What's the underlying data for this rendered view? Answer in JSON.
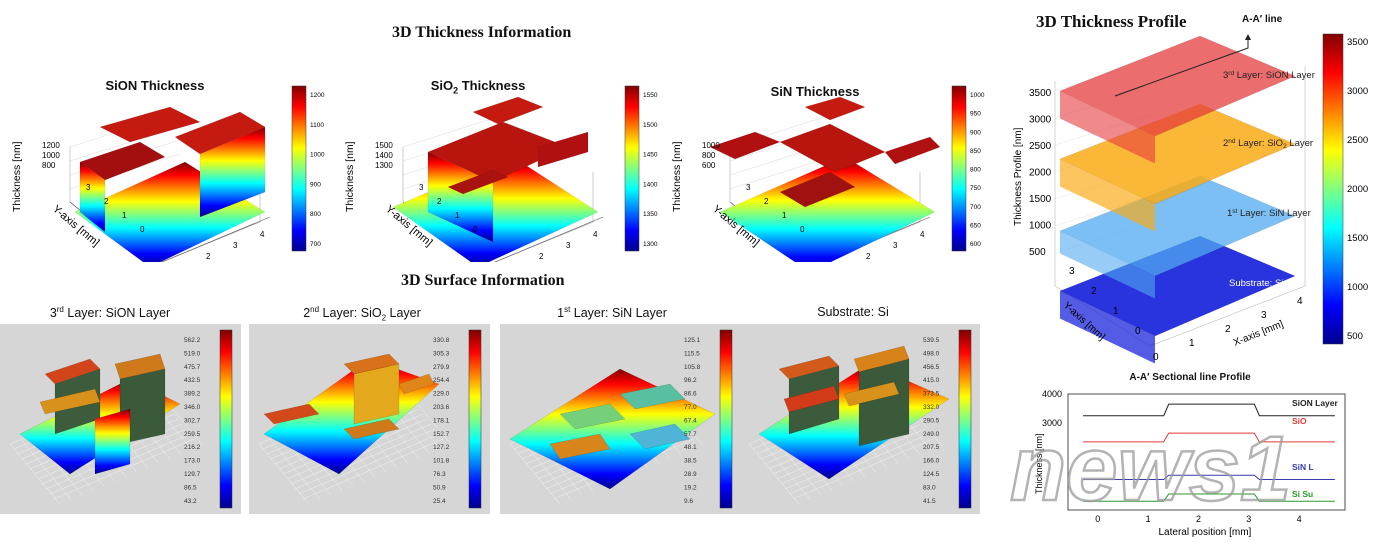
{
  "colors": {
    "panel_bg": "#d6d6d6",
    "jet": [
      "#00008f",
      "#0000ff",
      "#0080ff",
      "#00ffff",
      "#80ff80",
      "#ffff00",
      "#ff8000",
      "#ff0000",
      "#800000"
    ],
    "sion_line": "#222222",
    "sio2_line": "#e03a3a",
    "sin_line": "#3a3ab0",
    "si_line": "#2a9a2a",
    "watermark": "#9a9a9a"
  },
  "section_thickness_info": {
    "title": "3D Thickness Information"
  },
  "section_surface_info": {
    "title": "3D Surface Information"
  },
  "section_thickness_profile": {
    "title": "3D Thickness Profile",
    "aa_label": "A-A′ line"
  },
  "thickness_plots": [
    {
      "title_main": "SiON Thickness",
      "title_sub": "",
      "z_label": "Thickness [nm]",
      "x_label": "X-axis [mm]",
      "y_label": "Y-axis [mm]",
      "z_ticks": [
        "1200",
        "1000",
        "800"
      ],
      "x_ticks": [
        "0",
        "1",
        "2",
        "3",
        "4"
      ],
      "y_ticks": [
        "0",
        "1",
        "2",
        "3"
      ],
      "colorbar_ticks": [
        "1200",
        "1100",
        "1000",
        "900",
        "800",
        "700"
      ],
      "chart_data": {
        "type": "surface",
        "z_range": [
          700,
          1250
        ],
        "x_range": [
          0,
          4.5
        ],
        "y_range": [
          0,
          3.5
        ]
      }
    },
    {
      "title_main": "SiO",
      "title_sub": "2",
      "title_rest": " Thickness",
      "z_label": "Thickness [nm]",
      "x_label": "X-axis [mm]",
      "y_label": "Y-axis [mm]",
      "z_ticks": [
        "1500",
        "1400",
        "1300"
      ],
      "x_ticks": [
        "0",
        "1",
        "2",
        "3",
        "4"
      ],
      "y_ticks": [
        "0",
        "1",
        "2",
        "3"
      ],
      "colorbar_ticks": [
        "1550",
        "1500",
        "1450",
        "1400",
        "1350",
        "1300"
      ],
      "chart_data": {
        "type": "surface",
        "z_range": [
          1280,
          1560
        ],
        "x_range": [
          0,
          4.5
        ],
        "y_range": [
          0,
          3.5
        ]
      }
    },
    {
      "title_main": "SiN Thickness",
      "title_sub": "",
      "z_label": "Thickness [nm]",
      "x_label": "X-axis [mm]",
      "y_label": "Y-axis [mm]",
      "z_ticks": [
        "1000",
        "800",
        "600"
      ],
      "x_ticks": [
        "0",
        "1",
        "2",
        "3",
        "4"
      ],
      "y_ticks": [
        "0",
        "1",
        "2",
        "3"
      ],
      "colorbar_ticks": [
        "1000",
        "950",
        "900",
        "850",
        "800",
        "750",
        "700",
        "650",
        "600"
      ],
      "chart_data": {
        "type": "surface",
        "z_range": [
          580,
          1020
        ],
        "x_range": [
          0,
          4.5
        ],
        "y_range": [
          0,
          3.5
        ]
      }
    }
  ],
  "surface_panels": [
    {
      "title_pre": "3",
      "title_sup": "rd",
      "title_post": " Layer: SiON Layer",
      "scale": [
        "562.2",
        "519.0",
        "475.7",
        "432.5",
        "389.2",
        "346.0",
        "302.7",
        "259.5",
        "216.2",
        "173.0",
        "129.7",
        "86.5",
        "43.2"
      ]
    },
    {
      "title_pre": "2",
      "title_sup": "nd",
      "title_post": " Layer: SiO",
      "title_sub": "2",
      "title_end": " Layer",
      "scale": [
        "330.8",
        "305.3",
        "279.9",
        "254.4",
        "229.0",
        "203.6",
        "178.1",
        "152.7",
        "127.2",
        "101.8",
        "76.3",
        "50.9",
        "25.4"
      ]
    },
    {
      "title_pre": "1",
      "title_sup": "st",
      "title_post": " Layer: SiN Layer",
      "scale": [
        "125.1",
        "115.5",
        "105.8",
        "96.2",
        "86.6",
        "77.0",
        "67.4",
        "57.7",
        "48.1",
        "38.5",
        "28.9",
        "19.2",
        "9.6"
      ]
    },
    {
      "title_pre": "",
      "title_sup": "",
      "title_post": "Substrate: Si",
      "scale": [
        "539.5",
        "498.0",
        "456.5",
        "415.0",
        "373.5",
        "332.0",
        "290.5",
        "249.0",
        "207.5",
        "166.0",
        "124.5",
        "83.0",
        "41.5"
      ]
    }
  ],
  "profile_3d": {
    "z_label": "Thickness Profile [nm]",
    "x_label": "X-axis [mm]",
    "y_label": "Y-axis [mm]",
    "z_ticks": [
      "3500",
      "3000",
      "2500",
      "2000",
      "1500",
      "1000",
      "500"
    ],
    "x_ticks": [
      "0",
      "1",
      "2",
      "3",
      "4"
    ],
    "y_ticks": [
      "0",
      "1",
      "2",
      "3"
    ],
    "colorbar_ticks": [
      "3500",
      "3000",
      "2500",
      "2000",
      "1500",
      "1000",
      "500"
    ],
    "layers": [
      {
        "pre": "3",
        "sup": "rd",
        "post": " Layer: SiON Layer"
      },
      {
        "pre": "2",
        "sup": "nd",
        "post": " Layer: SiO",
        "sub": "2",
        "end": " Layer"
      },
      {
        "pre": "1",
        "sup": "st",
        "post": " Layer: SiN Layer"
      },
      {
        "pre": "",
        "sup": "",
        "post": "Substrate: Si"
      }
    ],
    "chart_data": {
      "type": "surface",
      "z_range": [
        0,
        3700
      ],
      "x_range": [
        0,
        4.5
      ],
      "y_range": [
        0,
        3.5
      ]
    }
  },
  "sectional_profile": {
    "title": "A-A′ Sectional line Profile",
    "x_label": "Lateral position [mm]",
    "y_label": "Thickness [nm]",
    "x_ticks": [
      "0",
      "1",
      "2",
      "3",
      "4"
    ],
    "y_ticks": [
      "4000",
      "3000"
    ],
    "legend": [
      "SiON Layer",
      "SiO",
      "SiN L",
      "Si Su"
    ],
    "chart_data": {
      "type": "line",
      "x_range": [
        -0.6,
        4.9
      ],
      "y_range": [
        0,
        4000
      ],
      "series": [
        {
          "name": "SiON Layer",
          "x": [
            -0.3,
            1.3,
            1.4,
            3.1,
            3.2,
            4.7
          ],
          "y": [
            3250,
            3250,
            3650,
            3650,
            3250,
            3250
          ]
        },
        {
          "name": "SiO",
          "x": [
            -0.3,
            1.3,
            1.4,
            3.1,
            3.2,
            4.7
          ],
          "y": [
            2350,
            2350,
            2650,
            2650,
            2350,
            2350
          ]
        },
        {
          "name": "SiN L",
          "x": [
            -0.3,
            1.3,
            1.4,
            3.1,
            3.2,
            4.7
          ],
          "y": [
            1050,
            1050,
            1200,
            1200,
            1050,
            1050
          ]
        },
        {
          "name": "Si Su",
          "x": [
            -0.3,
            1.3,
            1.4,
            3.1,
            3.2,
            4.7
          ],
          "y": [
            300,
            300,
            550,
            550,
            300,
            300
          ]
        }
      ]
    }
  },
  "watermark": {
    "text": "news1"
  }
}
